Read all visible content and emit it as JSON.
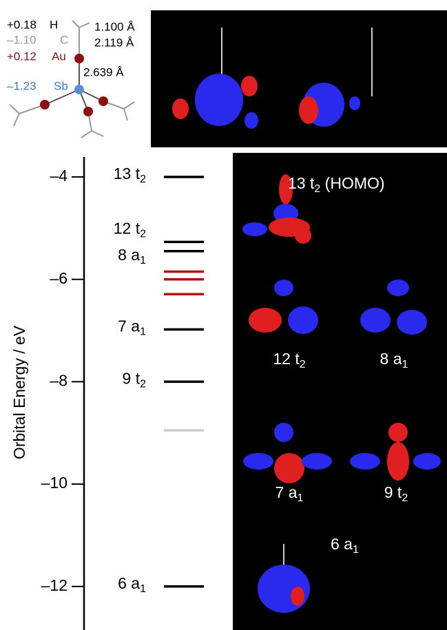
{
  "structure": {
    "atoms": [
      {
        "charge": "+0.18",
        "symbol": "H"
      },
      {
        "charge": "–1.10",
        "symbol": "C"
      },
      {
        "charge": "+0.12",
        "symbol": "Au"
      },
      {
        "charge": "–1.23",
        "symbol": "Sb"
      }
    ],
    "bond_lengths": [
      "1.100 Å",
      "2.119 Å",
      "2.639 Å"
    ]
  },
  "chart_data": {
    "type": "levels",
    "y_label": "Orbital Energy / eV",
    "ylim": [
      -12.85,
      -3.61
    ],
    "yticks": [
      {
        "value": -4,
        "label": "–4"
      },
      {
        "value": -6,
        "label": "–6"
      },
      {
        "value": -8,
        "label": "–8"
      },
      {
        "value": -10,
        "label": "–10"
      },
      {
        "value": -12,
        "label": "–12"
      }
    ],
    "values": [
      -4.0,
      -5.27,
      -5.45,
      -5.85,
      -6.0,
      -6.29,
      -6.98,
      -8.0,
      -8.95,
      -12.0
    ],
    "colors": [
      "#000000",
      "#000000",
      "#000000",
      "#b01010",
      "#b01010",
      "#b01010",
      "#000000",
      "#000000",
      "#cccccc",
      "#000000"
    ],
    "labels": [
      {
        "main": "13 t",
        "sub": "2"
      },
      {
        "main": "12 t",
        "sub": "2"
      },
      {
        "main": "8 a",
        "sub": "1"
      },
      null,
      null,
      null,
      {
        "main": "7 a",
        "sub": "1"
      },
      {
        "main": "9 t",
        "sub": "2"
      },
      null,
      {
        "main": "6 a",
        "sub": "1"
      }
    ]
  },
  "orbital_panels": [
    {
      "main": "13 t",
      "sub": "2",
      "after": " (HOMO)"
    },
    {
      "main": "12 t",
      "sub": "2"
    },
    {
      "main": "8 a",
      "sub": "1"
    },
    {
      "main": "7 a",
      "sub": "1"
    },
    {
      "main": "9 t",
      "sub": "2"
    },
    {
      "main": "6 a",
      "sub": "1"
    }
  ]
}
